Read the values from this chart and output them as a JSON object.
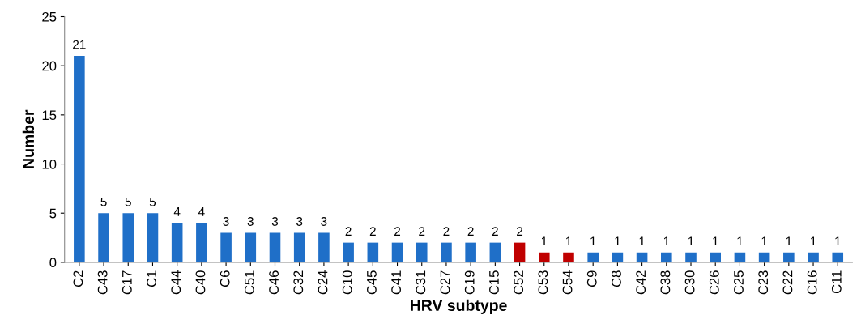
{
  "chart_data": {
    "type": "bar",
    "xlabel": "HRV subtype",
    "ylabel": "Number",
    "categories": [
      "C2",
      "C43",
      "C17",
      "C1",
      "C44",
      "C40",
      "C6",
      "C51",
      "C46",
      "C32",
      "C24",
      "C10",
      "C45",
      "C41",
      "C31",
      "C27",
      "C19",
      "C15",
      "C52",
      "C53",
      "C54",
      "C9",
      "C8",
      "C42",
      "C38",
      "C30",
      "C26",
      "C25",
      "C23",
      "C22",
      "C16",
      "C11"
    ],
    "values": [
      21,
      5,
      5,
      5,
      4,
      4,
      3,
      3,
      3,
      3,
      3,
      2,
      2,
      2,
      2,
      2,
      2,
      2,
      2,
      1,
      1,
      1,
      1,
      1,
      1,
      1,
      1,
      1,
      1,
      1,
      1,
      1
    ],
    "colors": [
      "#1f6fc8",
      "#1f6fc8",
      "#1f6fc8",
      "#1f6fc8",
      "#1f6fc8",
      "#1f6fc8",
      "#1f6fc8",
      "#1f6fc8",
      "#1f6fc8",
      "#1f6fc8",
      "#1f6fc8",
      "#1f6fc8",
      "#1f6fc8",
      "#1f6fc8",
      "#1f6fc8",
      "#1f6fc8",
      "#1f6fc8",
      "#1f6fc8",
      "#c00000",
      "#c00000",
      "#c00000",
      "#1f6fc8",
      "#1f6fc8",
      "#1f6fc8",
      "#1f6fc8",
      "#1f6fc8",
      "#1f6fc8",
      "#1f6fc8",
      "#1f6fc8",
      "#1f6fc8",
      "#1f6fc8",
      "#1f6fc8"
    ],
    "ylim": [
      0,
      25
    ],
    "yticks": [
      0,
      5,
      10,
      15,
      20,
      25
    ],
    "data_labels": true,
    "grid": false
  }
}
